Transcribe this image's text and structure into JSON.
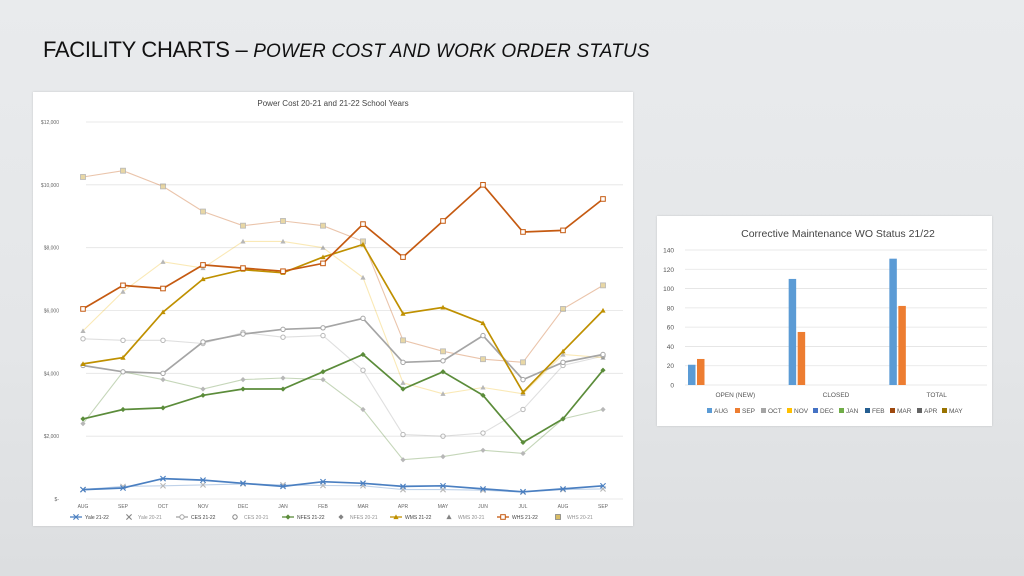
{
  "slide": {
    "title_main": "FACILITY CHARTS – ",
    "title_sub": "POWER COST AND WORK ORDER STATUS"
  },
  "chart_data": [
    {
      "type": "line",
      "title": "Power Cost 20-21 and 21-22 School Years",
      "categories": [
        "AUG",
        "SEP",
        "OCT",
        "NOV",
        "DEC",
        "JAN",
        "FEB",
        "MAR",
        "APR",
        "MAY",
        "JUN",
        "JUL",
        "AUG",
        "SEP"
      ],
      "ylim": [
        0,
        12000
      ],
      "yticks": [
        0,
        2000,
        4000,
        6000,
        8000,
        10000,
        12000
      ],
      "ytick_labels": [
        "$-",
        "$2,000",
        "$4,000",
        "$6,000",
        "$8,000",
        "$10,000",
        "$12,000"
      ],
      "grid": true,
      "legend_position": "bottom",
      "series": [
        {
          "name": "Yale 21-22",
          "color": "#4a7fc1",
          "marker": "x",
          "faded": false,
          "values": [
            300,
            350,
            650,
            600,
            500,
            400,
            550,
            500,
            400,
            420,
            320,
            230,
            320,
            420
          ]
        },
        {
          "name": "Yale 20-21",
          "color": "#4a7fc1",
          "marker": "x",
          "faded": true,
          "values": [
            300,
            400,
            420,
            450,
            480,
            450,
            430,
            420,
            300,
            300,
            280,
            220,
            300,
            320
          ]
        },
        {
          "name": "CES 21-22",
          "color": "#a5a5a5",
          "marker": "circle",
          "faded": false,
          "values": [
            4250,
            4050,
            4000,
            5000,
            5250,
            5400,
            5450,
            5750,
            4350,
            4400,
            5200,
            3800,
            4350,
            4600
          ]
        },
        {
          "name": "CES 20-21",
          "color": "#a5a5a5",
          "marker": "circle",
          "faded": true,
          "values": [
            5100,
            5050,
            5050,
            4950,
            5300,
            5150,
            5200,
            4100,
            2050,
            2000,
            2100,
            2850,
            4250,
            4550
          ]
        },
        {
          "name": "NFES 21-22",
          "color": "#5b8c3a",
          "marker": "diamond",
          "faded": false,
          "values": [
            2550,
            2850,
            2900,
            3300,
            3500,
            3500,
            4050,
            4600,
            3500,
            4050,
            3300,
            1800,
            2550,
            4100
          ]
        },
        {
          "name": "NFES 20-21",
          "color": "#5b8c3a",
          "marker": "diamond",
          "faded": true,
          "values": [
            2400,
            4050,
            3800,
            3500,
            3800,
            3850,
            3800,
            2850,
            1250,
            1350,
            1550,
            1450,
            2550,
            2850
          ]
        },
        {
          "name": "WMS 21-22",
          "color": "#bf9000",
          "marker": "triangle",
          "faded": false,
          "values": [
            4300,
            4500,
            5950,
            7000,
            7300,
            7200,
            7700,
            8100,
            5900,
            6100,
            5600,
            3400,
            4700,
            6000
          ]
        },
        {
          "name": "WMS 20-21",
          "color": "#f2c232",
          "marker": "triangle",
          "faded": true,
          "values": [
            5350,
            6600,
            7550,
            7350,
            8200,
            8200,
            8000,
            7050,
            3700,
            3350,
            3550,
            3350,
            4600,
            4500
          ]
        },
        {
          "name": "WHS 21-22",
          "color": "#c55a11",
          "marker": "square",
          "faded": false,
          "values": [
            6050,
            6800,
            6700,
            7450,
            7350,
            7250,
            7500,
            8750,
            7700,
            8850,
            10000,
            8500,
            8550,
            9550
          ]
        },
        {
          "name": "WHS 20-21",
          "color": "#c55a11",
          "marker": "square-filled",
          "faded": true,
          "values": [
            10250,
            10450,
            9950,
            9150,
            8700,
            8850,
            8700,
            8200,
            5050,
            4700,
            4450,
            4350,
            6050,
            6800
          ]
        }
      ]
    },
    {
      "type": "bar",
      "title": "Corrective Maintenance WO Status 21/22",
      "categories": [
        "OPEN (NEW)",
        "CLOSED",
        "TOTAL"
      ],
      "ylim": [
        0,
        140
      ],
      "yticks": [
        0,
        20,
        40,
        60,
        80,
        100,
        120,
        140
      ],
      "grid": true,
      "legend_position": "bottom",
      "legend": [
        {
          "name": "AUG",
          "color": "#5b9bd5"
        },
        {
          "name": "SEP",
          "color": "#ed7d31"
        },
        {
          "name": "OCT",
          "color": "#a5a5a5"
        },
        {
          "name": "NOV",
          "color": "#ffc000"
        },
        {
          "name": "DEC",
          "color": "#4472c4"
        },
        {
          "name": "JAN",
          "color": "#70ad47"
        },
        {
          "name": "FEB",
          "color": "#255e91"
        },
        {
          "name": "MAR",
          "color": "#9e480e"
        },
        {
          "name": "APR",
          "color": "#636363"
        },
        {
          "name": "MAY",
          "color": "#997300"
        }
      ],
      "series": [
        {
          "name": "AUG",
          "color": "#5b9bd5",
          "values": [
            21,
            110,
            131
          ]
        },
        {
          "name": "SEP",
          "color": "#ed7d31",
          "values": [
            27,
            55,
            82
          ]
        }
      ]
    }
  ]
}
